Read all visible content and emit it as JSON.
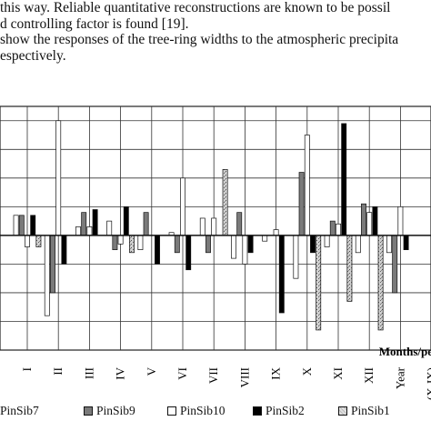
{
  "text_lines": [
    "this way. Reliable quantitative reconstructions are known to be possil",
    "d controlling factor is found [19].",
    "show the responses of the tree-ring widths to the atmospheric precipita",
    "espectively."
  ],
  "chart_data": {
    "type": "bar",
    "xlabel": "Months/pe",
    "categories": [
      "I",
      "II",
      "III",
      "IV",
      "V",
      "VI",
      "VII",
      "VIII",
      "IX",
      "X",
      "XI",
      "XII",
      "Year",
      "(X-IX)"
    ],
    "ylim": [
      -0.4,
      0.45
    ],
    "grid": true,
    "series": [
      {
        "name": "PinSib7",
        "color": "#ffffff",
        "pattern": "none",
        "values": [
          0.07,
          -0.28,
          0.03,
          0.05,
          -0.05,
          0.01,
          0.06,
          -0.08,
          -0.02,
          -0.15,
          -0.04,
          -0.06,
          -0.06,
          0.0
        ]
      },
      {
        "name": "PinSib9",
        "color": "#7a7a7a",
        "pattern": "none",
        "values": [
          0.07,
          -0.2,
          0.08,
          -0.05,
          0.08,
          -0.06,
          -0.06,
          0.08,
          0.0,
          0.22,
          0.05,
          0.11,
          -0.2,
          0.0
        ]
      },
      {
        "name": "PinSib10",
        "color": "#ffffff",
        "pattern": "none",
        "values": [
          -0.04,
          0.4,
          0.03,
          -0.03,
          0.0,
          0.2,
          0.06,
          -0.1,
          0.02,
          0.35,
          0.04,
          0.08,
          0.1,
          0.0
        ]
      },
      {
        "name": "PinSib2",
        "color": "#000000",
        "pattern": "none",
        "values": [
          0.07,
          -0.1,
          0.09,
          0.1,
          -0.1,
          -0.12,
          0.0,
          -0.06,
          -0.27,
          -0.06,
          0.39,
          0.1,
          -0.05,
          0.0
        ]
      },
      {
        "name": "PinSib1",
        "color": "#c4c4c4",
        "pattern": "speckle",
        "values": [
          -0.04,
          0.0,
          0.0,
          -0.06,
          0.0,
          0.0,
          0.23,
          0.0,
          0.0,
          -0.33,
          -0.23,
          -0.33,
          0.0,
          0.0
        ]
      }
    ]
  }
}
